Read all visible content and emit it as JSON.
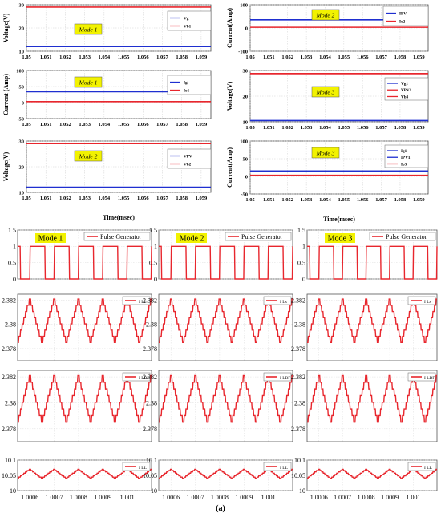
{
  "caption": "(a)",
  "colors": {
    "blue": "#1f2fd0",
    "red": "#e8262d",
    "mode_box": "#f2f200",
    "grid": "#d0d0d0"
  },
  "chart_data": [
    {
      "id": "tl1",
      "type": "line",
      "mode_label": "Mode 1",
      "ylabel": "Voltage(V)",
      "xlabel": "",
      "xlim": [
        1.05,
        1.0595
      ],
      "ylim": [
        10,
        30
      ],
      "yticks": [
        "10",
        "20",
        "30"
      ],
      "xticks": [
        "1.05",
        "1.051",
        "1.052",
        "1.053",
        "1.054",
        "1.055",
        "1.056",
        "1.057",
        "1.058",
        "1.059"
      ],
      "series": [
        {
          "name": "Vg",
          "color": "blue",
          "value": 12
        },
        {
          "name": "Vb1",
          "color": "red",
          "value": 29
        }
      ]
    },
    {
      "id": "tl2",
      "type": "line",
      "mode_label": "Mode 1",
      "ylabel": "Current (Amp)",
      "xlabel": "",
      "xlim": [
        1.05,
        1.0595
      ],
      "ylim": [
        -50,
        100
      ],
      "yticks": [
        "-50",
        "0",
        "50",
        "100"
      ],
      "xticks": [
        "1.05",
        "1.051",
        "1.052",
        "1.053",
        "1.054",
        "1.055",
        "1.056",
        "1.057",
        "1.058",
        "1.059"
      ],
      "series": [
        {
          "name": "Ig",
          "color": "blue",
          "value": 34
        },
        {
          "name": "Io1",
          "color": "red",
          "value": 3
        }
      ]
    },
    {
      "id": "tl3",
      "type": "line",
      "mode_label": "Mode 2",
      "ylabel": "Voltage(V)",
      "xlabel": "Time(msec)",
      "xlim": [
        1.05,
        1.0595
      ],
      "ylim": [
        10,
        30
      ],
      "yticks": [
        "10",
        "20",
        "30"
      ],
      "xticks": [
        "1.05",
        "1.051",
        "1.052",
        "1.053",
        "1.054",
        "1.055",
        "1.056",
        "1.057",
        "1.058",
        "1.059"
      ],
      "series": [
        {
          "name": "VPV",
          "color": "blue",
          "value": 12
        },
        {
          "name": "Vb2",
          "color": "red",
          "value": 29
        }
      ]
    },
    {
      "id": "tr1",
      "type": "line",
      "mode_label": "Mode 2",
      "ylabel": "Current(Amp)",
      "xlabel": "",
      "xlim": [
        1.05,
        1.0595
      ],
      "ylim": [
        -100,
        100
      ],
      "yticks": [
        "-100",
        "0",
        "100"
      ],
      "xticks": [
        "1.05",
        "1.051",
        "1.052",
        "1.053",
        "1.054",
        "1.055",
        "1.056",
        "1.057",
        "1.058",
        "1.059"
      ],
      "series": [
        {
          "name": "IPV",
          "color": "blue",
          "value": 35
        },
        {
          "name": "Io2",
          "color": "red",
          "value": 3
        }
      ]
    },
    {
      "id": "tr2",
      "type": "line",
      "mode_label": "Mode 3",
      "ylabel": "Voltage(V)",
      "xlabel": "",
      "xlim": [
        1.05,
        1.0595
      ],
      "ylim": [
        10,
        30
      ],
      "yticks": [
        "10",
        "20",
        "30"
      ],
      "xticks": [
        "1.05",
        "1.051",
        "1.052",
        "1.053",
        "1.054",
        "1.055",
        "1.056",
        "1.057",
        "1.058",
        "1.059"
      ],
      "series": [
        {
          "name": "Vg1",
          "color": "blue",
          "value": 10.5
        },
        {
          "name": "VPV1",
          "color": "red",
          "value": 28.8
        },
        {
          "name": "Vb3",
          "color": "red",
          "value": 28.8
        }
      ]
    },
    {
      "id": "tr3",
      "type": "line",
      "mode_label": "Mode 3",
      "ylabel": "Current(Amp)",
      "xlabel": "Time(msec)",
      "xlim": [
        1.05,
        1.0595
      ],
      "ylim": [
        -50,
        100
      ],
      "yticks": [
        "-50",
        "0",
        "50",
        "100"
      ],
      "xticks": [
        "1.05",
        "1.051",
        "1.052",
        "1.053",
        "1.054",
        "1.055",
        "1.056",
        "1.057",
        "1.058",
        "1.059"
      ],
      "series": [
        {
          "name": "Ig1",
          "color": "blue",
          "value": 15
        },
        {
          "name": "IPV1",
          "color": "blue",
          "value": 15
        },
        {
          "name": "Io3",
          "color": "red",
          "value": 3
        }
      ]
    },
    {
      "id": "bottom_grid",
      "type": "line",
      "columns": [
        "Mode 1",
        "Mode 2",
        "Mode 3"
      ],
      "xlim": [
        1.00055,
        1.0011
      ],
      "xticks": [
        "1.0006",
        "1.0007",
        "1.0008",
        "1.0009",
        "1.001"
      ],
      "rows": [
        {
          "legend": "Pulse Generator",
          "ylim": [
            0,
            1.5
          ],
          "yticks": [
            "0",
            "0.5",
            "1",
            "1.5"
          ],
          "waveform": "pulse",
          "low": 0,
          "high": 1,
          "period": 0.0001,
          "duty": 0.62
        },
        {
          "legend": "I Ls",
          "ylim": [
            2.377,
            2.3825
          ],
          "yticks": [
            "2.378",
            "2.38",
            "2.382"
          ],
          "waveform": "staircase",
          "min": 2.3785,
          "max": 2.3821,
          "period": 0.0001
        },
        {
          "legend": "I LBF",
          "ylim": [
            2.377,
            2.3825
          ],
          "yticks": [
            "2.378",
            "2.38",
            "2.382"
          ],
          "waveform": "staircase",
          "min": 2.3785,
          "max": 2.3821,
          "period": 0.0001
        },
        {
          "legend": "I LL",
          "ylim": [
            10,
            10.1
          ],
          "yticks": [
            "10",
            "10.05",
            "10.1"
          ],
          "waveform": "staircase",
          "min": 10.04,
          "max": 10.07,
          "period": 0.0001
        }
      ]
    }
  ]
}
